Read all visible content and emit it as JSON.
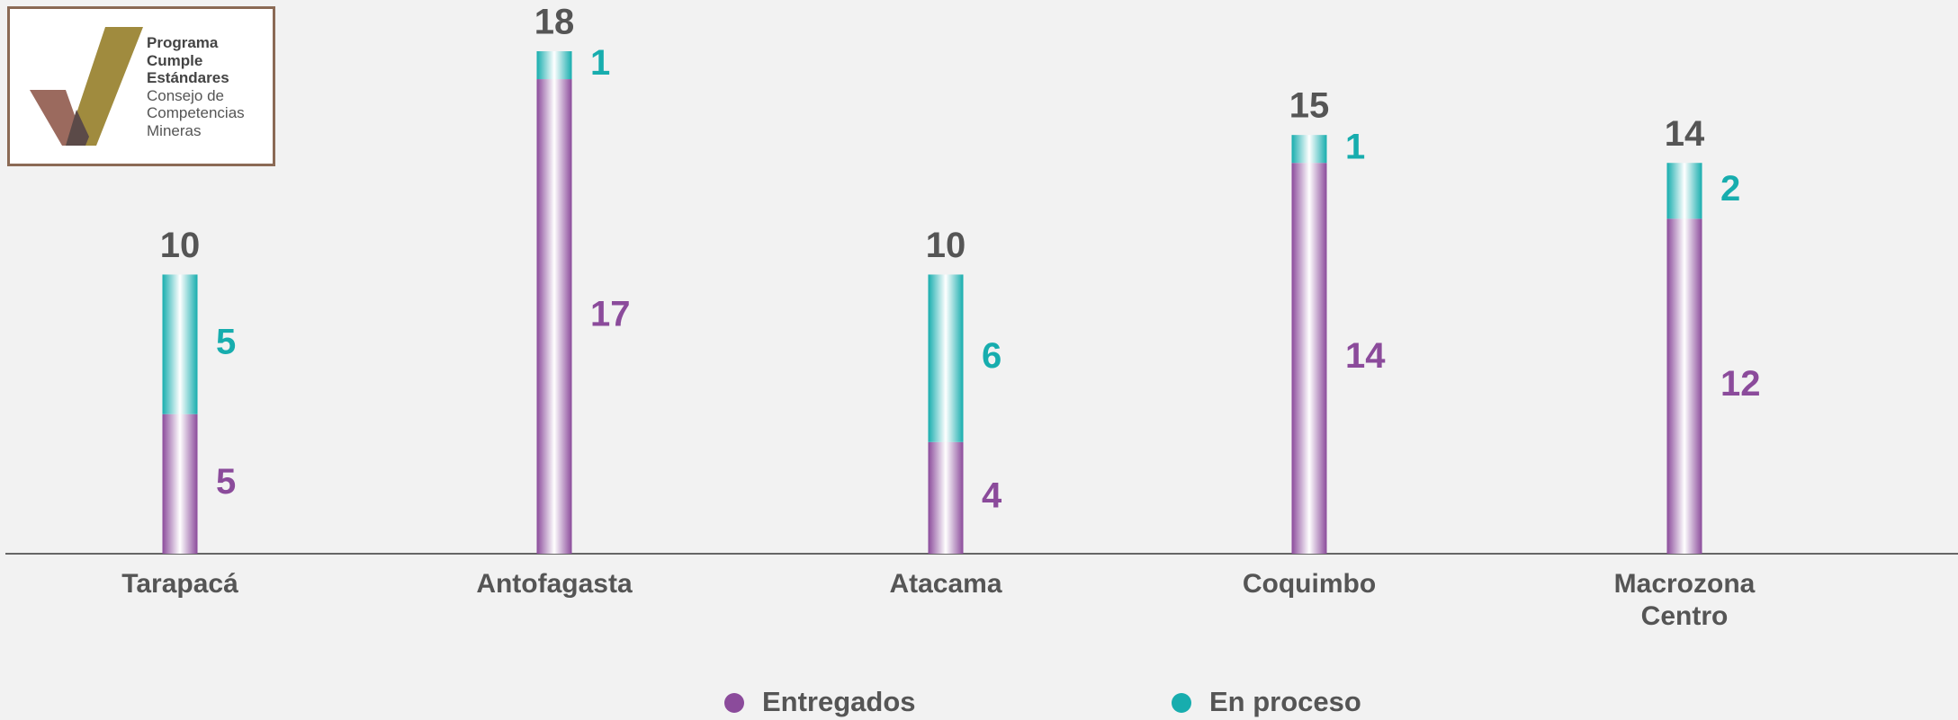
{
  "logo": {
    "lines": [
      "Programa",
      "Cumple",
      "Estándares",
      "Consejo de",
      "Competencias",
      "Mineras"
    ]
  },
  "chart_data": {
    "type": "stacked_bar",
    "categories": [
      "Tarapacá",
      "Antofagasta",
      "Atacama",
      "Coquimbo",
      "Macrozona Centro"
    ],
    "series": [
      {
        "name": "Entregados",
        "color": "#8b4b9b",
        "values": [
          5,
          17,
          4,
          14,
          12
        ]
      },
      {
        "name": "En proceso",
        "color": "#17adae",
        "values": [
          5,
          1,
          6,
          1,
          2
        ]
      }
    ],
    "totals": [
      10,
      18,
      10,
      15,
      14
    ],
    "ylim": [
      0,
      18
    ]
  }
}
